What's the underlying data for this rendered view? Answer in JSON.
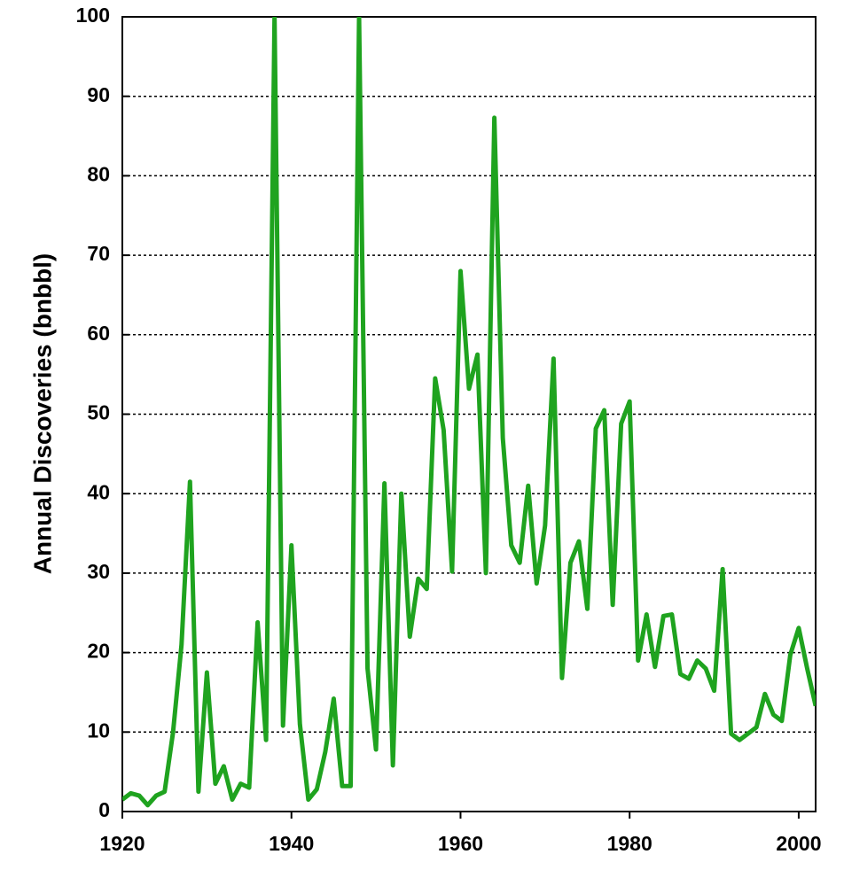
{
  "chart_data": {
    "type": "line",
    "y_label": "Annual Discoveries (bnbbl)",
    "color": "#1fa31f",
    "x": [
      1920,
      1921,
      1922,
      1923,
      1924,
      1925,
      1926,
      1927,
      1928,
      1929,
      1930,
      1931,
      1932,
      1933,
      1934,
      1935,
      1936,
      1937,
      1938,
      1939,
      1940,
      1941,
      1942,
      1943,
      1944,
      1945,
      1946,
      1947,
      1948,
      1949,
      1950,
      1951,
      1952,
      1953,
      1954,
      1955,
      1956,
      1957,
      1958,
      1959,
      1960,
      1961,
      1962,
      1963,
      1964,
      1965,
      1966,
      1967,
      1968,
      1969,
      1970,
      1971,
      1972,
      1973,
      1974,
      1975,
      1976,
      1977,
      1978,
      1979,
      1980,
      1981,
      1982,
      1983,
      1984,
      1985,
      1986,
      1987,
      1988,
      1989,
      1990,
      1991,
      1992,
      1993,
      1994,
      1995,
      1996,
      1997,
      1998,
      1999,
      2000,
      2001,
      2002
    ],
    "values": [
      1.5,
      2.3,
      2,
      0.8,
      2,
      2.5,
      10,
      21,
      41.5,
      2.5,
      17.5,
      3.5,
      5.7,
      1.5,
      3.5,
      3,
      23.8,
      9,
      100,
      10.8,
      33.5,
      11,
      1.5,
      2.8,
      7.5,
      14.2,
      3.2,
      3.2,
      100,
      18,
      7.8,
      41.3,
      5.8,
      40,
      22,
      29.3,
      28,
      54.5,
      48,
      30.2,
      68,
      53.2,
      57.5,
      30,
      87.3,
      47,
      33.5,
      31.3,
      41,
      28.7,
      36,
      57,
      16.8,
      31.3,
      34,
      25.5,
      48.2,
      50.5,
      26,
      48.8,
      51.6,
      19,
      24.8,
      18.2,
      24.6,
      24.8,
      17.3,
      16.7,
      19,
      18,
      15.2,
      30.5,
      9.8,
      9,
      9.8,
      10.6,
      14.8,
      12.2,
      11.4,
      19.7,
      23.1,
      18,
      13.3
    ],
    "xlim": [
      1920,
      2002
    ],
    "xticks": [
      1920,
      1940,
      1960,
      1980,
      2000
    ],
    "ylim": [
      0,
      100
    ],
    "yticks": [
      0,
      10,
      20,
      30,
      40,
      50,
      60,
      70,
      80,
      90,
      100
    ],
    "grid": true
  }
}
